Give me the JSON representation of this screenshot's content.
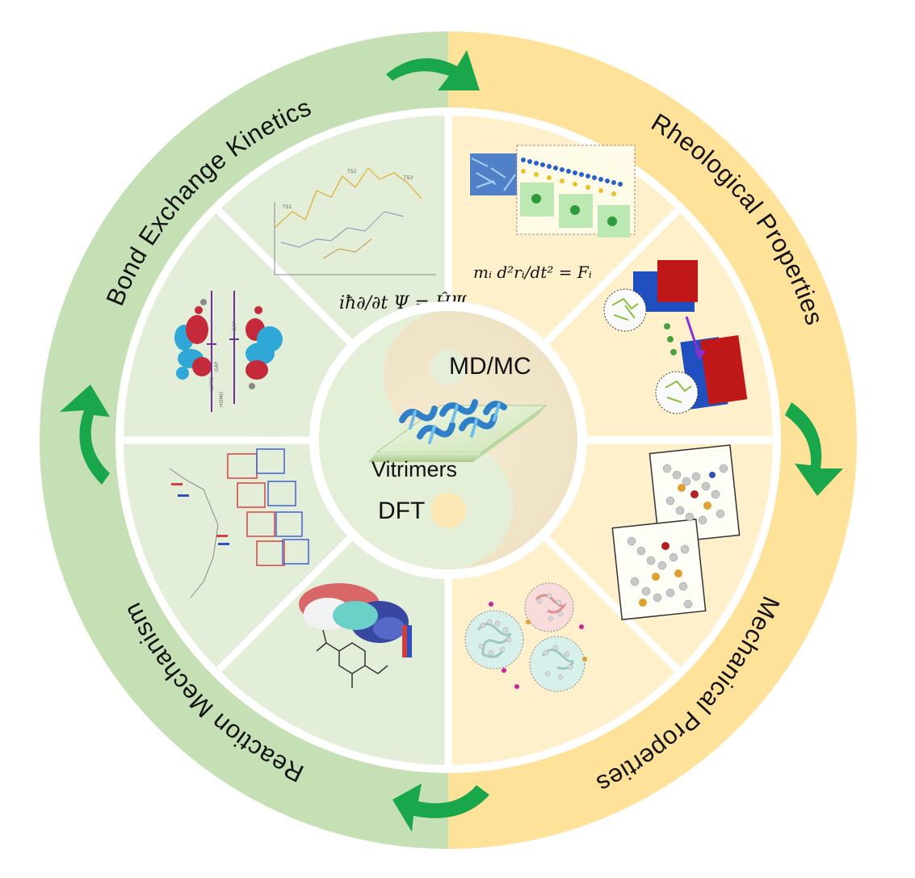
{
  "ring_labels": {
    "top_left": "Bond Exchange Kinetics",
    "top_right": "Rheological Properties",
    "bottom_right": "Mechanical Properties",
    "bottom_left": "Reaction Mechanism"
  },
  "center": {
    "top_label": "MD/MC",
    "bottom_label": "DFT",
    "material_label": "Vitrimers"
  },
  "equations": {
    "schrodinger": "iħ∂/∂t Ψ = ĤΨ",
    "newton": "mᵢ d²rᵢ/dt² = Fᵢ"
  },
  "orbital_labels": [
    "LUMO",
    "GAP",
    "HOMO",
    "LUMO",
    "GAP",
    "HOMO"
  ],
  "colors": {
    "green_ring": "#c5e0b4",
    "yellow_ring": "#ffe29a",
    "green_panel": "#e3eed8",
    "yellow_panel": "#fff0cc",
    "arrow_green": "#1aa64a",
    "divider": "#ffffff"
  },
  "icons": [
    "curved-arrow-icon"
  ]
}
